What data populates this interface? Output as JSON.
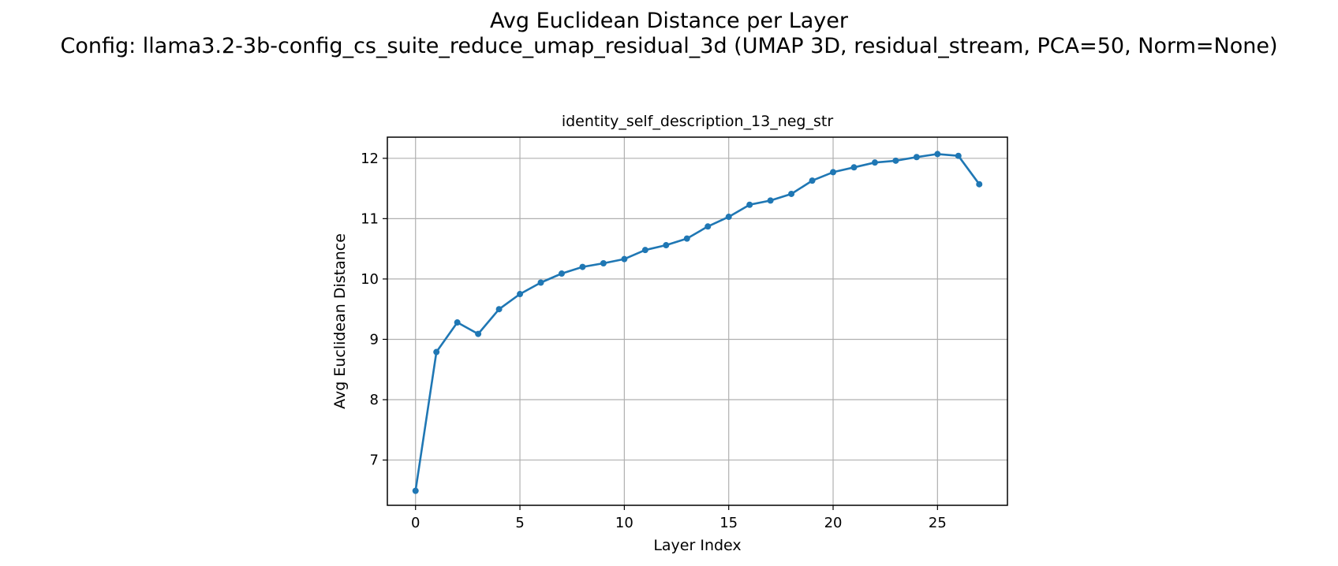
{
  "figure": {
    "title_line1": "Avg Euclidean Distance per Layer",
    "title_line2": "Config: llama3.2-3b-config_cs_suite_reduce_umap_residual_3d (UMAP 3D, residual_stream, PCA=50, Norm=None)"
  },
  "chart_data": {
    "type": "line",
    "title": "identity_self_description_13_neg_str",
    "xlabel": "Layer Index",
    "ylabel": "Avg Euclidean Distance",
    "xlim": [
      -1.35,
      28.35
    ],
    "ylim": [
      6.25,
      12.35
    ],
    "xticks": [
      0,
      5,
      10,
      15,
      20,
      25
    ],
    "yticks": [
      7,
      8,
      9,
      10,
      11,
      12
    ],
    "grid": true,
    "marker": "circle",
    "color": "#1f77b4",
    "series": [
      {
        "x": [
          0,
          1,
          2,
          3,
          4,
          5,
          6,
          7,
          8,
          9,
          10,
          11,
          12,
          13,
          14,
          15,
          16,
          17,
          18,
          19,
          20,
          21,
          22,
          23,
          24,
          25,
          26,
          27
        ],
        "values": [
          6.49,
          8.79,
          9.28,
          9.09,
          9.5,
          9.75,
          9.94,
          10.09,
          10.2,
          10.26,
          10.33,
          10.48,
          10.56,
          10.67,
          10.87,
          11.03,
          11.23,
          11.3,
          11.41,
          11.63,
          11.77,
          11.85,
          11.93,
          11.96,
          12.02,
          12.07,
          12.04,
          11.57
        ]
      }
    ]
  }
}
